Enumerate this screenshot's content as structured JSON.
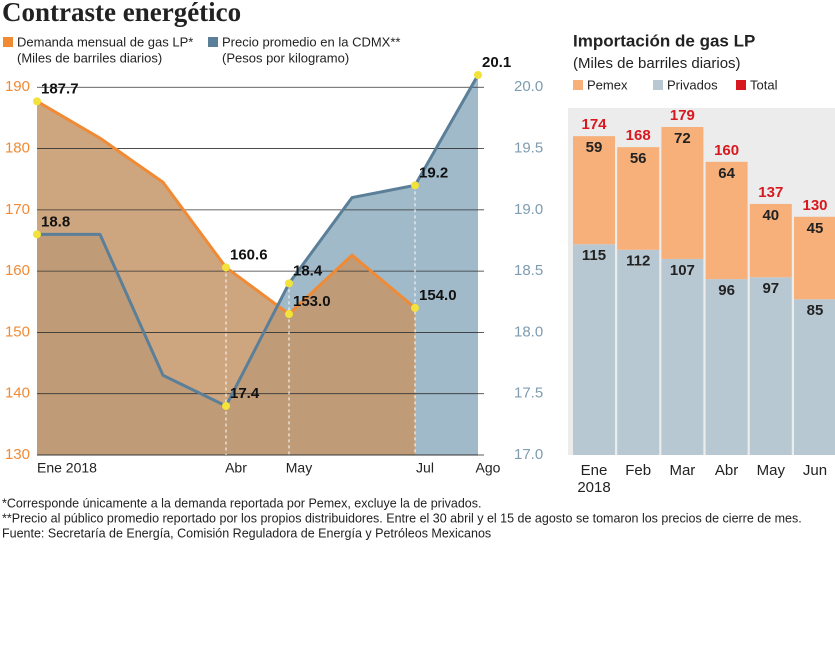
{
  "title": "Contraste energético",
  "notes": [
    "*Corresponde únicamente a la demanda reportada por Pemex, excluye la de privados.",
    "**Precio al público promedio reportado por los propios distribuidores. Entre el 30 abril y el 15 de agosto se tomaron los precios de cierre de mes.",
    "Fuente: Secretaría de Energía, Comisión Reguladora de Energía y Petróleos Mexicanos"
  ],
  "chart_data": [
    {
      "type": "line",
      "categories": [
        "Ene 2018",
        null,
        null,
        "Abr",
        "May",
        null,
        "Jul",
        "Ago"
      ],
      "series": [
        {
          "name": "Demanda mensual de gas LP*",
          "unit": "(Miles de barriles diarios)",
          "color": "#f08a34",
          "values": [
            187.7,
            181.7,
            174.5,
            160.6,
            153.0,
            162.6,
            154.0,
            null
          ],
          "value_labels": [
            "187.7",
            null,
            null,
            "160.6",
            "153.0",
            null,
            "154.0",
            null
          ]
        },
        {
          "name": "Precio promedio en la CDMX**",
          "unit": "(Pesos por kilogramo)",
          "color": "#5b7f98",
          "axis": "y2",
          "values": [
            18.8,
            18.8,
            17.65,
            17.4,
            18.4,
            19.1,
            19.2,
            20.1
          ],
          "value_labels": [
            "18.8",
            null,
            null,
            "17.4",
            "18.4",
            null,
            "19.2",
            "20.1"
          ]
        }
      ],
      "ylim": [
        130,
        192
      ],
      "yticks": [
        130,
        140,
        150,
        160,
        170,
        180,
        190
      ],
      "y2lim": [
        17,
        20.1
      ],
      "y2ticks": [
        {
          "value": 17,
          "label": "17.0"
        },
        17.5,
        {
          "value": 18,
          "label": "18.0"
        },
        18.5,
        {
          "value": 19,
          "label": "19.0"
        },
        19.5,
        {
          "value": 20,
          "label": "20.0"
        }
      ],
      "grid": true
    },
    {
      "type": "stacked_bar",
      "title": "Importación de gas LP",
      "subtitle": "(Miles de barriles diarios)",
      "categories": [
        "Ene 2018",
        "Feb",
        "Mar",
        "Abr",
        "May",
        "Jun"
      ],
      "series": [
        {
          "name": "Pemex",
          "color": "#f7b07a",
          "values": [
            59,
            56,
            72,
            64,
            40,
            45
          ]
        },
        {
          "name": "Privados",
          "color": "#b8c8d3",
          "values": [
            115,
            112,
            107,
            96,
            97,
            85
          ]
        },
        {
          "name": "Total",
          "color": "#d7191f",
          "values": [
            174,
            168,
            179,
            160,
            137,
            130
          ]
        }
      ]
    }
  ]
}
